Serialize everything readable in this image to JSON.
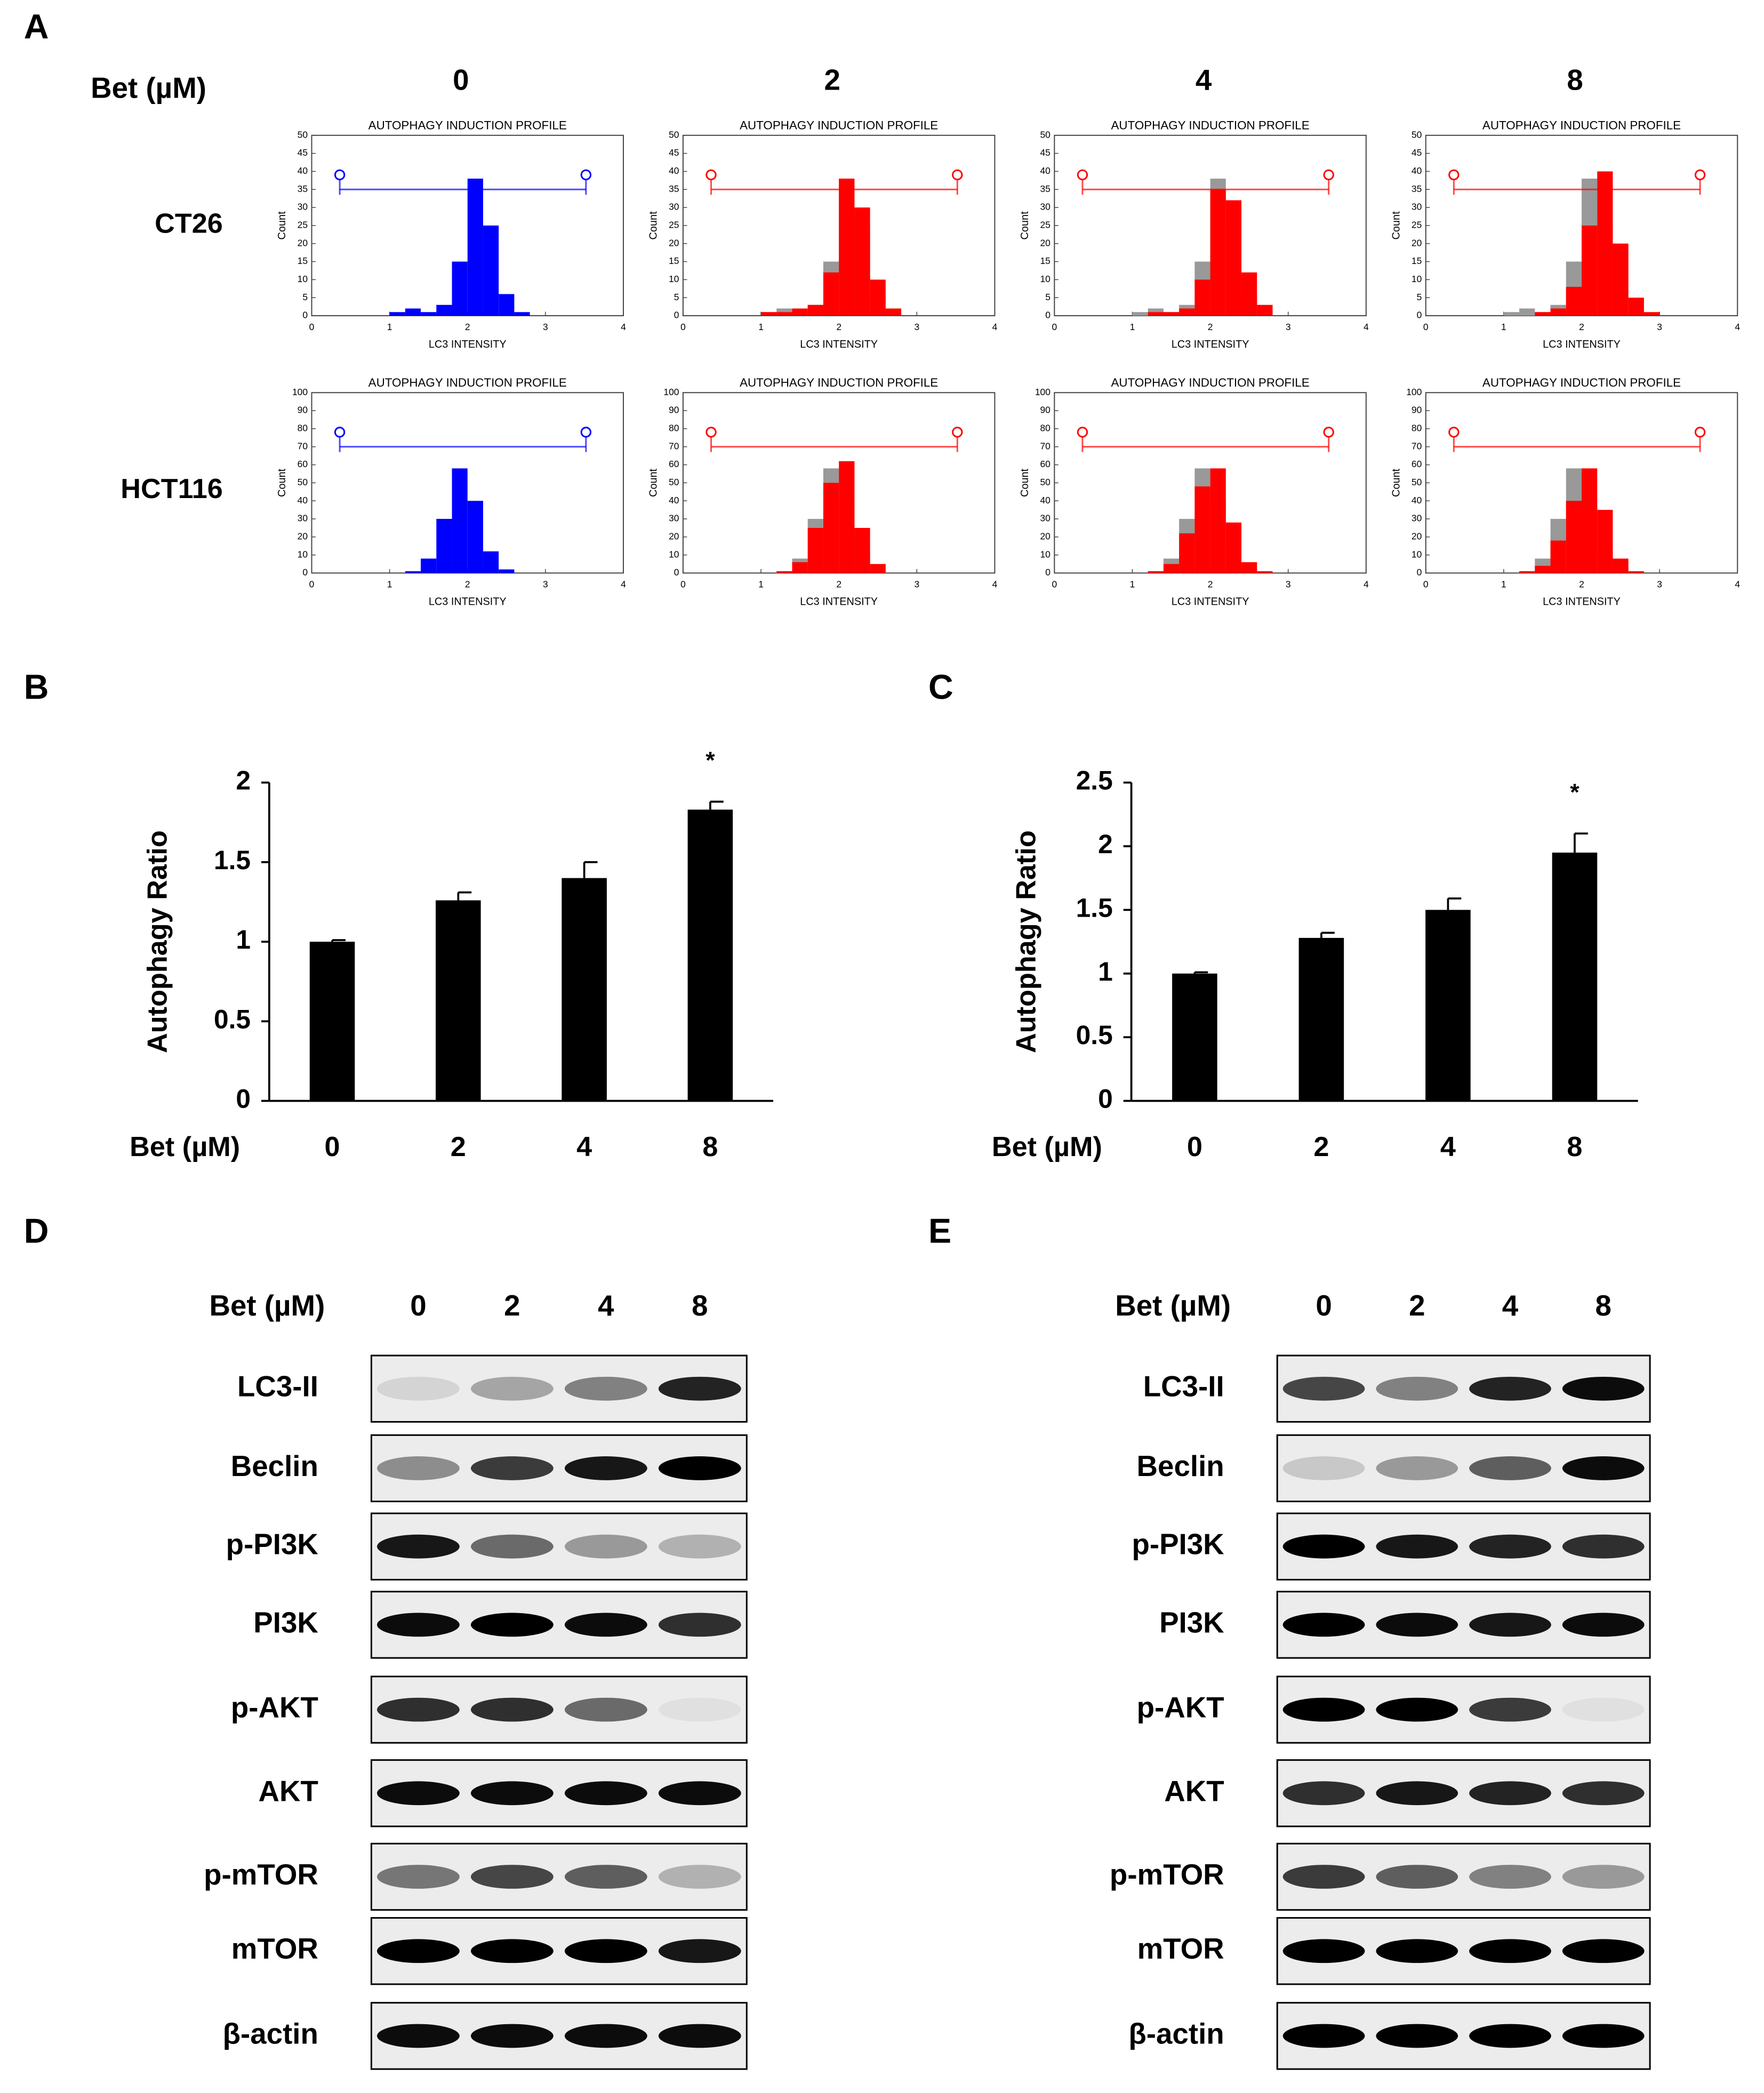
{
  "panel_labels": [
    "A",
    "B",
    "C",
    "D",
    "E"
  ],
  "flow": {
    "dose_label": "Bet (µM)",
    "doses": [
      "0",
      "2",
      "4",
      "8"
    ],
    "cell_lines": [
      "CT26",
      "HCT116"
    ],
    "histograms": [
      [
        {
          "type": "histogram",
          "title": "AUTOPHAGY INDUCTION PROFILE",
          "xlabel": "LC3 INTENSITY",
          "ylabel": "Count",
          "bins": [
            0,
            0.2,
            0.4,
            0.6,
            0.8,
            1,
            1.2,
            1.4,
            1.6,
            1.8,
            2,
            2.2,
            2.4,
            2.6,
            2.8,
            3,
            3.2,
            3.4,
            3.6,
            3.8,
            4
          ],
          "series": [
            {
              "color": "#0000ff",
              "values": [
                0,
                0,
                0,
                0,
                0,
                1,
                2,
                1,
                3,
                15,
                38,
                25,
                6,
                1,
                0,
                0,
                0,
                0,
                0,
                0
              ]
            }
          ],
          "xlim": [
            0,
            4
          ],
          "ylim": [
            0,
            50
          ],
          "xticks": [
            0,
            1,
            2,
            3,
            4
          ],
          "yticks": [
            0,
            5,
            10,
            15,
            20,
            25,
            30,
            35,
            40,
            45,
            50
          ]
        },
        {
          "type": "histogram",
          "title": "AUTOPHAGY INDUCTION PROFILE",
          "xlabel": "LC3 INTENSITY",
          "ylabel": "Count",
          "bins": [
            0,
            0.2,
            0.4,
            0.6,
            0.8,
            1,
            1.2,
            1.4,
            1.6,
            1.8,
            2,
            2.2,
            2.4,
            2.6,
            2.8,
            3,
            3.2,
            3.4,
            3.6,
            3.8,
            4
          ],
          "series": [
            {
              "color": "#999999",
              "values": [
                0,
                0,
                0,
                0,
                0,
                1,
                2,
                1,
                3,
                15,
                38,
                25,
                6,
                1,
                0,
                0,
                0,
                0,
                0,
                0
              ]
            },
            {
              "color": "#ff0000",
              "values": [
                0,
                0,
                0,
                0,
                0,
                1,
                1,
                2,
                3,
                12,
                38,
                30,
                10,
                2,
                0,
                0,
                0,
                0,
                0,
                0
              ]
            }
          ],
          "xlim": [
            0,
            4
          ],
          "ylim": [
            0,
            50
          ],
          "xticks": [
            0,
            1,
            2,
            3,
            4
          ],
          "yticks": [
            0,
            5,
            10,
            15,
            20,
            25,
            30,
            35,
            40,
            45,
            50
          ]
        },
        {
          "type": "histogram",
          "title": "AUTOPHAGY INDUCTION PROFILE",
          "xlabel": "LC3 INTENSITY",
          "ylabel": "Count",
          "bins": [
            0,
            0.2,
            0.4,
            0.6,
            0.8,
            1,
            1.2,
            1.4,
            1.6,
            1.8,
            2,
            2.2,
            2.4,
            2.6,
            2.8,
            3,
            3.2,
            3.4,
            3.6,
            3.8,
            4
          ],
          "series": [
            {
              "color": "#999999",
              "values": [
                0,
                0,
                0,
                0,
                0,
                1,
                2,
                1,
                3,
                15,
                38,
                25,
                6,
                1,
                0,
                0,
                0,
                0,
                0,
                0
              ]
            },
            {
              "color": "#ff0000",
              "values": [
                0,
                0,
                0,
                0,
                0,
                0,
                1,
                1,
                2,
                10,
                35,
                32,
                12,
                3,
                0,
                0,
                0,
                0,
                0,
                0
              ]
            }
          ],
          "xlim": [
            0,
            4
          ],
          "ylim": [
            0,
            50
          ],
          "xticks": [
            0,
            1,
            2,
            3,
            4
          ],
          "yticks": [
            0,
            5,
            10,
            15,
            20,
            25,
            30,
            35,
            40,
            45,
            50
          ]
        },
        {
          "type": "histogram",
          "title": "AUTOPHAGY INDUCTION PROFILE",
          "xlabel": "LC3 INTENSITY",
          "ylabel": "Count",
          "bins": [
            0,
            0.2,
            0.4,
            0.6,
            0.8,
            1,
            1.2,
            1.4,
            1.6,
            1.8,
            2,
            2.2,
            2.4,
            2.6,
            2.8,
            3,
            3.2,
            3.4,
            3.6,
            3.8,
            4
          ],
          "series": [
            {
              "color": "#999999",
              "values": [
                0,
                0,
                0,
                0,
                0,
                1,
                2,
                1,
                3,
                15,
                38,
                25,
                6,
                1,
                0,
                0,
                0,
                0,
                0,
                0
              ]
            },
            {
              "color": "#ff0000",
              "values": [
                0,
                0,
                0,
                0,
                0,
                0,
                0,
                1,
                2,
                8,
                25,
                40,
                20,
                5,
                1,
                0,
                0,
                0,
                0,
                0
              ]
            }
          ],
          "xlim": [
            0,
            4
          ],
          "ylim": [
            0,
            50
          ],
          "xticks": [
            0,
            1,
            2,
            3,
            4
          ],
          "yticks": [
            0,
            5,
            10,
            15,
            20,
            25,
            30,
            35,
            40,
            45,
            50
          ]
        }
      ],
      [
        {
          "type": "histogram",
          "title": "AUTOPHAGY INDUCTION PROFILE",
          "xlabel": "LC3 INTENSITY",
          "ylabel": "Count",
          "bins": [
            0,
            0.2,
            0.4,
            0.6,
            0.8,
            1,
            1.2,
            1.4,
            1.6,
            1.8,
            2,
            2.2,
            2.4,
            2.6,
            2.8,
            3,
            3.2,
            3.4,
            3.6,
            3.8,
            4
          ],
          "series": [
            {
              "color": "#0000ff",
              "values": [
                0,
                0,
                0,
                0,
                0,
                0,
                1,
                8,
                30,
                58,
                40,
                12,
                2,
                0,
                0,
                0,
                0,
                0,
                0,
                0
              ]
            }
          ],
          "xlim": [
            0,
            4
          ],
          "ylim": [
            0,
            100
          ],
          "xticks": [
            0,
            1,
            2,
            3,
            4
          ],
          "yticks": [
            0,
            10,
            20,
            30,
            40,
            50,
            60,
            70,
            80,
            90,
            100
          ]
        },
        {
          "type": "histogram",
          "title": "AUTOPHAGY INDUCTION PROFILE",
          "xlabel": "LC3 INTENSITY",
          "ylabel": "Count",
          "bins": [
            0,
            0.2,
            0.4,
            0.6,
            0.8,
            1,
            1.2,
            1.4,
            1.6,
            1.8,
            2,
            2.2,
            2.4,
            2.6,
            2.8,
            3,
            3.2,
            3.4,
            3.6,
            3.8,
            4
          ],
          "series": [
            {
              "color": "#999999",
              "values": [
                0,
                0,
                0,
                0,
                0,
                0,
                1,
                8,
                30,
                58,
                40,
                12,
                2,
                0,
                0,
                0,
                0,
                0,
                0,
                0
              ]
            },
            {
              "color": "#ff0000",
              "values": [
                0,
                0,
                0,
                0,
                0,
                0,
                1,
                6,
                25,
                50,
                62,
                25,
                5,
                0,
                0,
                0,
                0,
                0,
                0,
                0
              ]
            }
          ],
          "xlim": [
            0,
            4
          ],
          "ylim": [
            0,
            100
          ],
          "xticks": [
            0,
            1,
            2,
            3,
            4
          ],
          "yticks": [
            0,
            10,
            20,
            30,
            40,
            50,
            60,
            70,
            80,
            90,
            100
          ]
        },
        {
          "type": "histogram",
          "title": "AUTOPHAGY INDUCTION PROFILE",
          "xlabel": "LC3 INTENSITY",
          "ylabel": "Count",
          "bins": [
            0,
            0.2,
            0.4,
            0.6,
            0.8,
            1,
            1.2,
            1.4,
            1.6,
            1.8,
            2,
            2.2,
            2.4,
            2.6,
            2.8,
            3,
            3.2,
            3.4,
            3.6,
            3.8,
            4
          ],
          "series": [
            {
              "color": "#999999",
              "values": [
                0,
                0,
                0,
                0,
                0,
                0,
                1,
                8,
                30,
                58,
                40,
                12,
                2,
                0,
                0,
                0,
                0,
                0,
                0,
                0
              ]
            },
            {
              "color": "#ff0000",
              "values": [
                0,
                0,
                0,
                0,
                0,
                0,
                1,
                5,
                22,
                48,
                58,
                28,
                6,
                1,
                0,
                0,
                0,
                0,
                0,
                0
              ]
            }
          ],
          "xlim": [
            0,
            4
          ],
          "ylim": [
            0,
            100
          ],
          "xticks": [
            0,
            1,
            2,
            3,
            4
          ],
          "yticks": [
            0,
            10,
            20,
            30,
            40,
            50,
            60,
            70,
            80,
            90,
            100
          ]
        },
        {
          "type": "histogram",
          "title": "AUTOPHAGY INDUCTION PROFILE",
          "xlabel": "LC3 INTENSITY",
          "ylabel": "Count",
          "bins": [
            0,
            0.2,
            0.4,
            0.6,
            0.8,
            1,
            1.2,
            1.4,
            1.6,
            1.8,
            2,
            2.2,
            2.4,
            2.6,
            2.8,
            3,
            3.2,
            3.4,
            3.6,
            3.8,
            4
          ],
          "series": [
            {
              "color": "#999999",
              "values": [
                0,
                0,
                0,
                0,
                0,
                0,
                1,
                8,
                30,
                58,
                40,
                12,
                2,
                0,
                0,
                0,
                0,
                0,
                0,
                0
              ]
            },
            {
              "color": "#ff0000",
              "values": [
                0,
                0,
                0,
                0,
                0,
                0,
                1,
                4,
                18,
                40,
                58,
                35,
                8,
                1,
                0,
                0,
                0,
                0,
                0,
                0
              ]
            }
          ],
          "xlim": [
            0,
            4
          ],
          "ylim": [
            0,
            100
          ],
          "xticks": [
            0,
            1,
            2,
            3,
            4
          ],
          "yticks": [
            0,
            10,
            20,
            30,
            40,
            50,
            60,
            70,
            80,
            90,
            100
          ]
        }
      ]
    ]
  },
  "chart_data": [
    {
      "type": "bar",
      "ylabel": "Autophagy Ratio",
      "xlabel": "Bet (µM)",
      "categories": [
        "0",
        "2",
        "4",
        "8"
      ],
      "values": [
        1,
        1.26,
        1.4,
        1.83
      ],
      "errors": [
        0.01,
        0.05,
        0.1,
        0.05
      ],
      "color": "#000000",
      "ylim": [
        0,
        2
      ],
      "yticks": [
        0,
        0.5,
        1,
        1.5,
        2
      ],
      "annotations": [
        {
          "text": "*",
          "category": "8"
        }
      ]
    },
    {
      "type": "bar",
      "ylabel": "Autophagy Ratio",
      "xlabel": "Bet (µM)",
      "categories": [
        "0",
        "2",
        "4",
        "8"
      ],
      "values": [
        1,
        1.28,
        1.5,
        1.95
      ],
      "errors": [
        0.01,
        0.04,
        0.09,
        0.15
      ],
      "color": "#000000",
      "ylim": [
        0,
        2.5
      ],
      "yticks": [
        0,
        0.5,
        1,
        1.5,
        2,
        2.5
      ],
      "annotations": [
        {
          "text": "*",
          "category": "8"
        }
      ]
    }
  ],
  "blots": [
    {
      "dose_label": "Bet (µM)",
      "lanes": [
        "0",
        "2",
        "4",
        "8"
      ],
      "rows": [
        {
          "label": "LC3-II",
          "intensity": [
            0.1,
            0.3,
            0.45,
            0.85
          ]
        },
        {
          "label": "Beclin",
          "intensity": [
            0.4,
            0.75,
            0.9,
            1
          ]
        },
        {
          "label": "p-PI3K",
          "intensity": [
            0.9,
            0.55,
            0.35,
            0.25
          ]
        },
        {
          "label": "PI3K",
          "intensity": [
            0.95,
            1,
            0.95,
            0.8
          ]
        },
        {
          "label": "p-AKT",
          "intensity": [
            0.8,
            0.8,
            0.55,
            0.05
          ]
        },
        {
          "label": "AKT",
          "intensity": [
            0.95,
            0.95,
            0.95,
            0.95
          ]
        },
        {
          "label": "p-mTOR",
          "intensity": [
            0.5,
            0.7,
            0.6,
            0.25
          ]
        },
        {
          "label": "mTOR",
          "intensity": [
            1,
            1,
            1,
            0.9
          ]
        },
        {
          "label": "β-actin",
          "intensity": [
            0.95,
            0.95,
            0.95,
            0.95
          ]
        }
      ]
    },
    {
      "dose_label": "Bet (µM)",
      "lanes": [
        "0",
        "2",
        "4",
        "8"
      ],
      "rows": [
        {
          "label": "LC3-II",
          "intensity": [
            0.7,
            0.45,
            0.85,
            0.95
          ]
        },
        {
          "label": "Beclin",
          "intensity": [
            0.15,
            0.35,
            0.6,
            0.95
          ]
        },
        {
          "label": "p-PI3K",
          "intensity": [
            1,
            0.9,
            0.85,
            0.8
          ]
        },
        {
          "label": "PI3K",
          "intensity": [
            1,
            0.95,
            0.9,
            0.95
          ]
        },
        {
          "label": "p-AKT",
          "intensity": [
            1,
            1,
            0.75,
            0.05
          ]
        },
        {
          "label": "AKT",
          "intensity": [
            0.8,
            0.9,
            0.85,
            0.8
          ]
        },
        {
          "label": "p-mTOR",
          "intensity": [
            0.75,
            0.6,
            0.45,
            0.35
          ]
        },
        {
          "label": "mTOR",
          "intensity": [
            1,
            1,
            1,
            1
          ]
        },
        {
          "label": "β-actin",
          "intensity": [
            1,
            1,
            1,
            1
          ]
        }
      ]
    }
  ]
}
